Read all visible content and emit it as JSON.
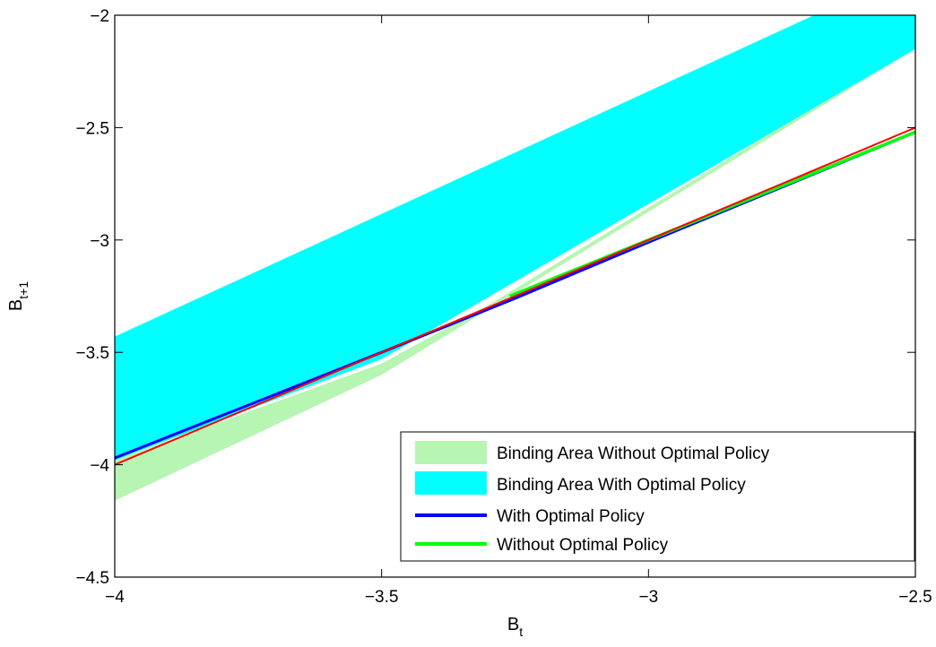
{
  "chart_data": {
    "type": "line",
    "xlabel": {
      "main": "B",
      "sub": "t"
    },
    "ylabel": {
      "main": "B",
      "sub": "t+1"
    },
    "xlim": [
      -4,
      -2.5
    ],
    "ylim": [
      -4.5,
      -2
    ],
    "x_ticks": [
      -4,
      -3.5,
      -3,
      -2.5
    ],
    "y_ticks": [
      -4.5,
      -4,
      -3.5,
      -3,
      -2.5,
      -2
    ],
    "x_tick_labels": [
      "−4",
      "−3.5",
      "−3",
      "−2.5"
    ],
    "y_tick_labels": [
      "−4.5",
      "−4",
      "−3.5",
      "−3",
      "−2.5",
      "−2"
    ],
    "grid": false,
    "legend_position": "bottom-right",
    "areas": [
      {
        "name": "Binding Area Without Optimal Policy",
        "color": "#b6f5b2",
        "upper": [
          [
            -4,
            -3.98
          ],
          [
            -3.5,
            -3.55
          ],
          [
            -3.3,
            -3.29
          ],
          [
            -2.5,
            -2.13
          ]
        ],
        "lower": [
          [
            -4,
            -4.16
          ],
          [
            -3.5,
            -3.6
          ],
          [
            -3.3,
            -3.31
          ],
          [
            -2.5,
            -2.15
          ]
        ]
      },
      {
        "name": "Binding Area With Optimal Policy",
        "color": "#00ffff",
        "upper": [
          [
            -4,
            -3.43
          ],
          [
            -2.69,
            -2.0
          ],
          [
            -2.5,
            -2.0
          ]
        ],
        "lower": [
          [
            -4,
            -3.98
          ],
          [
            -3.5,
            -3.53
          ],
          [
            -2.5,
            -2.15
          ]
        ]
      }
    ],
    "series": [
      {
        "name": "With Optimal Policy",
        "color": "#0000ff",
        "points": [
          [
            -4,
            -3.97
          ],
          [
            -3.5,
            -3.5
          ],
          [
            -3.25,
            -3.26
          ],
          [
            -3,
            -3.01
          ],
          [
            -2.5,
            -2.52
          ]
        ]
      },
      {
        "name": "Without Optimal Policy",
        "color": "#00ff00",
        "points": [
          [
            -3.26,
            -3.25
          ],
          [
            -3,
            -3.0
          ],
          [
            -2.5,
            -2.52
          ]
        ]
      },
      {
        "name": "",
        "color": "#ff0000",
        "points": [
          [
            -4,
            -4.0
          ],
          [
            -3.5,
            -3.5
          ],
          [
            -3,
            -3.0
          ],
          [
            -2.5,
            -2.5
          ]
        ]
      }
    ],
    "legend_entries": [
      {
        "label": "Binding Area Without Optimal Policy",
        "color": "#b6f5b2",
        "kind": "patch"
      },
      {
        "label": "Binding Area With Optimal Policy",
        "color": "#00ffff",
        "kind": "patch"
      },
      {
        "label": "With Optimal Policy",
        "color": "#0000ff",
        "kind": "line"
      },
      {
        "label": "Without Optimal Policy",
        "color": "#00ff00",
        "kind": "line"
      }
    ]
  }
}
